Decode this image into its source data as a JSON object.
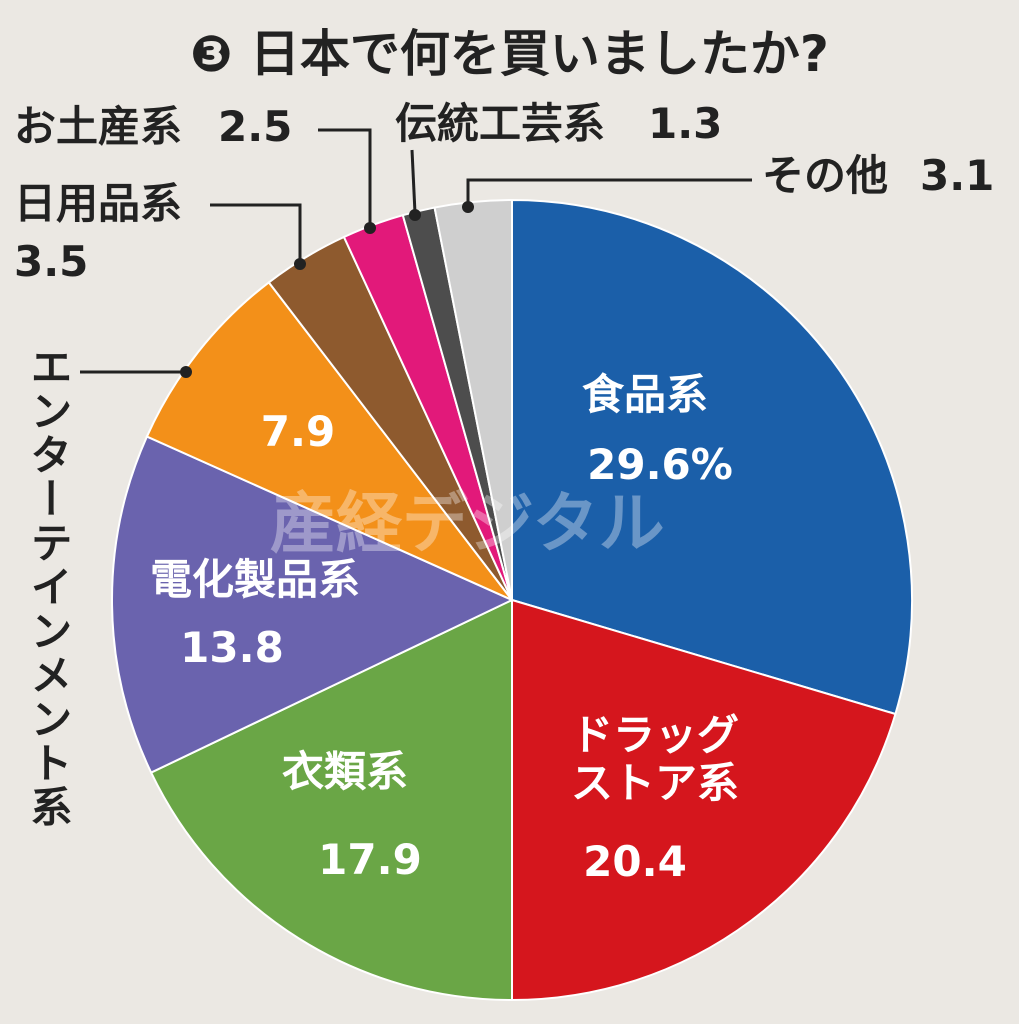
{
  "chart_data": {
    "type": "pie",
    "title": "❸ 日本で何を買いましたか?",
    "watermark": "産経デジタル",
    "categories": [
      "食品系",
      "ドラッグ\nストア系",
      "衣類系",
      "電化製品系",
      "エンターテインメント系",
      "日用品系",
      "お土産系",
      "伝統工芸系",
      "その他"
    ],
    "values": [
      29.6,
      20.4,
      17.9,
      13.8,
      7.9,
      3.5,
      2.5,
      1.3,
      3.1
    ],
    "value_labels": [
      "29.6%",
      "20.4",
      "17.9",
      "13.8",
      "7.9",
      "3.5",
      "2.5",
      "1.3",
      "3.1"
    ],
    "colors": [
      "#1b5fa9",
      "#d5161d",
      "#6aa646",
      "#6a63ae",
      "#f39019",
      "#8e5a2e",
      "#e2197a",
      "#4d4d4d",
      "#cfcfcf"
    ]
  }
}
